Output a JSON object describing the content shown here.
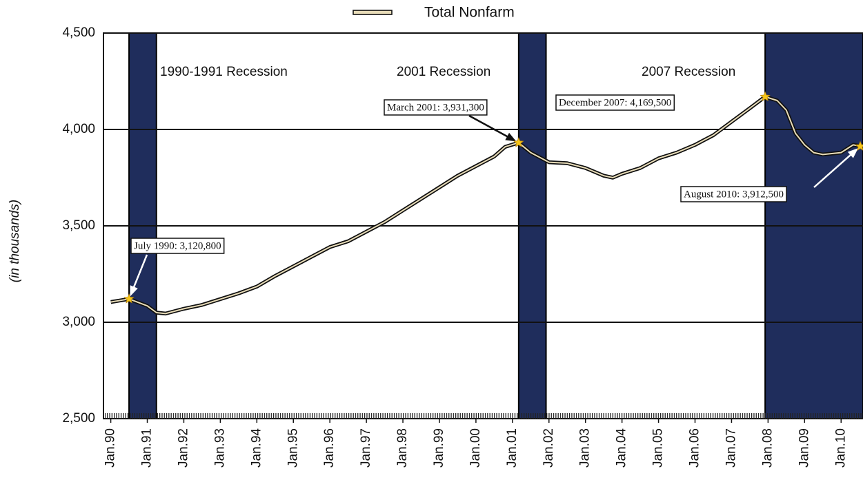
{
  "chart_data": {
    "type": "line",
    "legend": "Total Nonfarm",
    "ylabel": "(in thousands)",
    "x": [
      1990.0,
      1990.5,
      1991.0,
      1991.25,
      1991.5,
      1992.0,
      1992.5,
      1993.0,
      1993.5,
      1994.0,
      1994.5,
      1995.0,
      1995.5,
      1996.0,
      1996.5,
      1997.0,
      1997.5,
      1998.0,
      1998.5,
      1999.0,
      1999.5,
      2000.0,
      2000.5,
      2000.8,
      2001.17,
      2001.5,
      2002.0,
      2002.5,
      2003.0,
      2003.5,
      2003.75,
      2004.0,
      2004.5,
      2005.0,
      2005.5,
      2006.0,
      2006.5,
      2007.0,
      2007.5,
      2007.92,
      2008.25,
      2008.5,
      2008.75,
      2009.0,
      2009.25,
      2009.5,
      2010.0,
      2010.33,
      2010.58
    ],
    "series": [
      {
        "name": "Total Nonfarm",
        "color": "#e8dcb8",
        "values": [
          3105,
          3120.8,
          3085,
          3050,
          3045,
          3070,
          3090,
          3120,
          3150,
          3185,
          3240,
          3290,
          3340,
          3390,
          3420,
          3470,
          3520,
          3580,
          3640,
          3700,
          3760,
          3810,
          3860,
          3910,
          3931.3,
          3880,
          3830,
          3825,
          3800,
          3760,
          3750,
          3770,
          3800,
          3850,
          3880,
          3920,
          3970,
          4040,
          4110,
          4169.5,
          4150,
          4100,
          3980,
          3920,
          3880,
          3870,
          3880,
          3920,
          3912.5
        ]
      }
    ],
    "xlim": [
      1989.8,
      2010.6
    ],
    "ylim": [
      2500,
      4500
    ],
    "yticks": [
      {
        "value": 2500,
        "label": "2,500"
      },
      {
        "value": 3000,
        "label": "3,000"
      },
      {
        "value": 3500,
        "label": "3,500"
      },
      {
        "value": 4000,
        "label": "4,000"
      },
      {
        "value": 4500,
        "label": "4,500"
      }
    ],
    "xticks": [
      {
        "value": 1990,
        "label": "Jan.90"
      },
      {
        "value": 1991,
        "label": "Jan.91"
      },
      {
        "value": 1992,
        "label": "Jan.92"
      },
      {
        "value": 1993,
        "label": "Jan.93"
      },
      {
        "value": 1994,
        "label": "Jan.94"
      },
      {
        "value": 1995,
        "label": "Jan.95"
      },
      {
        "value": 1996,
        "label": "Jan.96"
      },
      {
        "value": 1997,
        "label": "Jan.97"
      },
      {
        "value": 1998,
        "label": "Jan.98"
      },
      {
        "value": 1999,
        "label": "Jan.99"
      },
      {
        "value": 2000,
        "label": "Jan.00"
      },
      {
        "value": 2001,
        "label": "Jan.01"
      },
      {
        "value": 2002,
        "label": "Jan.02"
      },
      {
        "value": 2003,
        "label": "Jan.03"
      },
      {
        "value": 2004,
        "label": "Jan.04"
      },
      {
        "value": 2005,
        "label": "Jan.05"
      },
      {
        "value": 2006,
        "label": "Jan.06"
      },
      {
        "value": 2007,
        "label": "Jan.07"
      },
      {
        "value": 2008,
        "label": "Jan.08"
      },
      {
        "value": 2009,
        "label": "Jan.09"
      },
      {
        "value": 2010,
        "label": "Jan.10"
      }
    ],
    "grid": true,
    "band_color": "#1f2d5c",
    "recessions": [
      {
        "label": "1990-1991 Recession",
        "start": 1990.5,
        "end": 1991.25
      },
      {
        "label": "2001 Recession",
        "start": 2001.17,
        "end": 2001.92
      },
      {
        "label": "2007 Recession",
        "start": 2007.92,
        "end": 2010.6
      }
    ],
    "annotations": [
      {
        "text": "July 1990: 3,120,800",
        "x": 1990.5,
        "y": 3120.8
      },
      {
        "text": "March 2001: 3,931,300",
        "x": 2001.17,
        "y": 3931.3
      },
      {
        "text": "December 2007: 4,169,500",
        "x": 2007.92,
        "y": 4169.5
      },
      {
        "text": "August 2010: 3,912,500",
        "x": 2010.58,
        "y": 3912.5
      }
    ]
  }
}
